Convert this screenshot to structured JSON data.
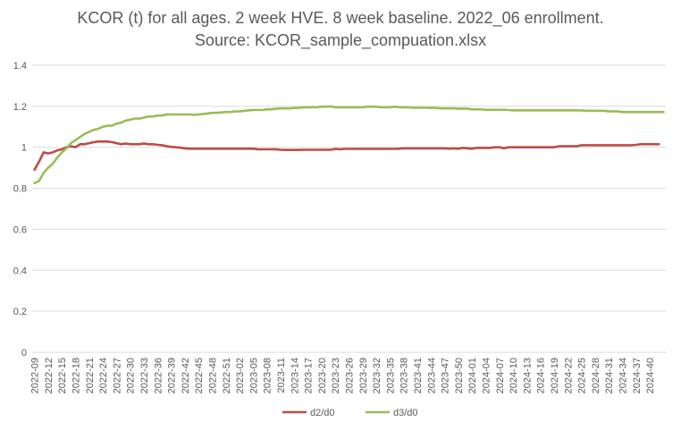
{
  "chart_data": {
    "type": "line",
    "title": "KCOR (t) for all ages. 2 week HVE. 8 week baseline. 2022_06 enrollment.",
    "subtitle": "Source: KCOR_sample_compuation.xlsx",
    "xlabel": "",
    "ylabel": "",
    "ylim": [
      0,
      1.4
    ],
    "yticks": [
      "0",
      "0.2",
      "0.4",
      "0.6",
      "0.8",
      "1",
      "1.2",
      "1.4"
    ],
    "grid": true,
    "legend_position": "bottom",
    "x_start_year": 2022,
    "x_start_week": 9,
    "x_end_year": 2024,
    "x_end_week": 41,
    "x_tick_every": 3,
    "x_tick_labels": [
      "2022-09",
      "2022-12",
      "2022-15",
      "2022-18",
      "2022-21",
      "2022-24",
      "2022-27",
      "2022-30",
      "2022-33",
      "2022-36",
      "2022-39",
      "2022-42",
      "2022-45",
      "2022-48",
      "2022-51",
      "2023-02",
      "2023-05",
      "2023-08",
      "2023-11",
      "2023-14",
      "2023-17",
      "2023-20",
      "2023-23",
      "2023-26",
      "2023-29",
      "2023-32",
      "2023-35",
      "2023-38",
      "2023-41",
      "2023-44",
      "2023-47",
      "2023-50",
      "2024-01",
      "2024-04",
      "2024-07",
      "2024-10",
      "2024-13",
      "2024-16",
      "2024-19",
      "2024-22",
      "2024-25",
      "2024-28",
      "2024-31",
      "2024-34",
      "2024-37",
      "2024-40"
    ],
    "series": [
      {
        "name": "d2/d0",
        "color": "#be4b48",
        "values": [
          0.89,
          0.93,
          0.975,
          0.97,
          0.975,
          0.985,
          0.99,
          1.0,
          1.005,
          1.0,
          1.015,
          1.015,
          1.02,
          1.025,
          1.028,
          1.028,
          1.028,
          1.025,
          1.02,
          1.015,
          1.018,
          1.015,
          1.015,
          1.015,
          1.018,
          1.015,
          1.015,
          1.012,
          1.01,
          1.005,
          1.002,
          1.0,
          0.998,
          0.995,
          0.993,
          0.993,
          0.993,
          0.993,
          0.993,
          0.993,
          0.993,
          0.993,
          0.993,
          0.993,
          0.993,
          0.993,
          0.993,
          0.993,
          0.993,
          0.99,
          0.99,
          0.99,
          0.99,
          0.99,
          0.988,
          0.987,
          0.987,
          0.987,
          0.987,
          0.988,
          0.988,
          0.988,
          0.988,
          0.988,
          0.988,
          0.988,
          0.992,
          0.99,
          0.992,
          0.992,
          0.992,
          0.992,
          0.992,
          0.992,
          0.992,
          0.992,
          0.992,
          0.992,
          0.992,
          0.992,
          0.993,
          0.995,
          0.995,
          0.995,
          0.995,
          0.995,
          0.995,
          0.995,
          0.995,
          0.995,
          0.995,
          0.993,
          0.995,
          0.993,
          0.997,
          0.995,
          0.993,
          0.997,
          0.997,
          0.997,
          0.997,
          1.0,
          1.0,
          0.995,
          1.0,
          1.0,
          1.0,
          1.0,
          1.0,
          1.0,
          1.0,
          1.0,
          1.0,
          1.0,
          1.0,
          1.005,
          1.005,
          1.005,
          1.005,
          1.005,
          1.01,
          1.01,
          1.01,
          1.01,
          1.01,
          1.01,
          1.01,
          1.01,
          1.01,
          1.01,
          1.01,
          1.01,
          1.012,
          1.015,
          1.015,
          1.015,
          1.015,
          1.015
        ]
      },
      {
        "name": "d3/d0",
        "color": "#9bbb59",
        "values": [
          0.825,
          0.835,
          0.875,
          0.9,
          0.92,
          0.95,
          0.975,
          0.995,
          1.02,
          1.035,
          1.05,
          1.065,
          1.075,
          1.085,
          1.09,
          1.1,
          1.105,
          1.105,
          1.115,
          1.12,
          1.13,
          1.135,
          1.14,
          1.14,
          1.145,
          1.15,
          1.15,
          1.155,
          1.155,
          1.16,
          1.16,
          1.16,
          1.16,
          1.16,
          1.16,
          1.158,
          1.16,
          1.162,
          1.165,
          1.168,
          1.168,
          1.17,
          1.172,
          1.172,
          1.175,
          1.175,
          1.178,
          1.18,
          1.182,
          1.182,
          1.182,
          1.185,
          1.185,
          1.188,
          1.19,
          1.19,
          1.19,
          1.192,
          1.192,
          1.195,
          1.195,
          1.195,
          1.195,
          1.198,
          1.198,
          1.2,
          1.195,
          1.195,
          1.195,
          1.195,
          1.195,
          1.195,
          1.195,
          1.198,
          1.198,
          1.198,
          1.195,
          1.195,
          1.195,
          1.198,
          1.195,
          1.195,
          1.195,
          1.193,
          1.193,
          1.193,
          1.193,
          1.192,
          1.192,
          1.19,
          1.19,
          1.19,
          1.19,
          1.188,
          1.188,
          1.188,
          1.185,
          1.185,
          1.185,
          1.183,
          1.183,
          1.183,
          1.183,
          1.183,
          1.182,
          1.18,
          1.18,
          1.18,
          1.18,
          1.18,
          1.18,
          1.18,
          1.18,
          1.18,
          1.18,
          1.18,
          1.18,
          1.18,
          1.18,
          1.18,
          1.18,
          1.178,
          1.178,
          1.178,
          1.178,
          1.178,
          1.175,
          1.175,
          1.175,
          1.172,
          1.172,
          1.172,
          1.172,
          1.172,
          1.172,
          1.172,
          1.172,
          1.172,
          1.172
        ]
      }
    ]
  }
}
